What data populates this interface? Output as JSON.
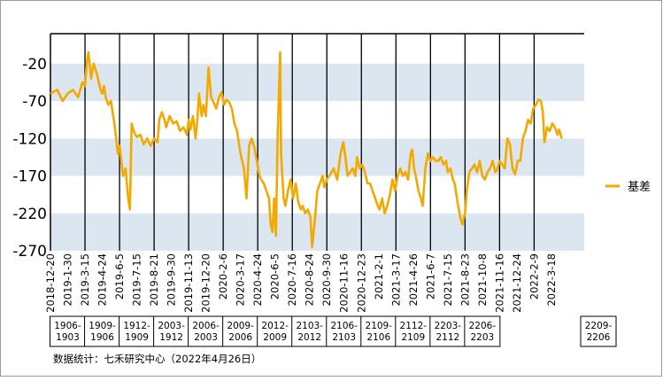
{
  "chart_data": {
    "type": "line",
    "title": "",
    "xlabel": "",
    "ylabel": "",
    "ylim": [
      -270,
      20
    ],
    "yticks": [
      -20,
      -70,
      -120,
      -170,
      -220,
      -270
    ],
    "grid": "alternating horizontal bands",
    "legend_position": "right",
    "colors": {
      "series": "#f2a900",
      "band": "#dce6f1",
      "frame": "#000000"
    },
    "dates": [
      "2018-12-20",
      "2019-1-30",
      "2019-3-15",
      "2019-4-24",
      "2019-6-5",
      "2019-7-15",
      "2019-8-21",
      "2019-9-30",
      "2019-11-13",
      "2019-12-20",
      "2020-2-6",
      "2020-3-17",
      "2020-4-24",
      "2020-6-5",
      "2020-7-16",
      "2020-8-24",
      "2020-9-30",
      "2020-11-16",
      "2020-12-23",
      "2021-2-1",
      "2021-3-17",
      "2021-4-26",
      "2021-6-7",
      "2021-7-15",
      "2021-8-23",
      "2021-10-8",
      "2021-11-16",
      "2021-12-24",
      "2022-2-9",
      "2022-3-18"
    ],
    "contract_labels": [
      "1906-\n1903",
      "1909-\n1906",
      "1912-\n1909",
      "2003-\n1912",
      "2006-\n2003",
      "2009-\n2006",
      "2012-\n2009",
      "2103-\n2012",
      "2106-\n2103",
      "2109-\n2106",
      "2112-\n2109",
      "2203-\n2112",
      "2206-\n2203",
      "2209-\n2206"
    ],
    "series": [
      {
        "name": "基差",
        "points": [
          [
            0,
            -60
          ],
          [
            0.4,
            -55
          ],
          [
            0.7,
            -70
          ],
          [
            1.0,
            -60
          ],
          [
            1.3,
            -55
          ],
          [
            1.6,
            -65
          ],
          [
            1.85,
            -45
          ],
          [
            2.0,
            -50
          ],
          [
            2.1,
            -20
          ],
          [
            2.2,
            -5
          ],
          [
            2.35,
            -40
          ],
          [
            2.5,
            -20
          ],
          [
            2.7,
            -35
          ],
          [
            2.9,
            -55
          ],
          [
            3.0,
            -60
          ],
          [
            3.1,
            -50
          ],
          [
            3.2,
            -65
          ],
          [
            3.35,
            -75
          ],
          [
            3.5,
            -70
          ],
          [
            3.7,
            -100
          ],
          [
            3.8,
            -120
          ],
          [
            3.9,
            -140
          ],
          [
            4.0,
            -130
          ],
          [
            4.2,
            -170
          ],
          [
            4.35,
            -160
          ],
          [
            4.5,
            -200
          ],
          [
            4.6,
            -215
          ],
          [
            4.7,
            -100
          ],
          [
            4.85,
            -112
          ],
          [
            5.0,
            -118
          ],
          [
            5.2,
            -115
          ],
          [
            5.4,
            -128
          ],
          [
            5.6,
            -120
          ],
          [
            5.8,
            -130
          ],
          [
            6.0,
            -120
          ],
          [
            6.2,
            -125
          ],
          [
            6.3,
            -95
          ],
          [
            6.45,
            -85
          ],
          [
            6.6,
            -95
          ],
          [
            6.7,
            -105
          ],
          [
            6.9,
            -90
          ],
          [
            7.1,
            -100
          ],
          [
            7.3,
            -97
          ],
          [
            7.5,
            -110
          ],
          [
            7.7,
            -105
          ],
          [
            7.9,
            -115
          ],
          [
            8.0,
            -95
          ],
          [
            8.1,
            -108
          ],
          [
            8.25,
            -90
          ],
          [
            8.4,
            -120
          ],
          [
            8.5,
            -95
          ],
          [
            8.6,
            -60
          ],
          [
            8.75,
            -90
          ],
          [
            8.85,
            -75
          ],
          [
            9.0,
            -90
          ],
          [
            9.15,
            -25
          ],
          [
            9.3,
            -65
          ],
          [
            9.45,
            -72
          ],
          [
            9.6,
            -80
          ],
          [
            9.75,
            -65
          ],
          [
            9.9,
            -58
          ],
          [
            10.05,
            -75
          ],
          [
            10.2,
            -68
          ],
          [
            10.35,
            -72
          ],
          [
            10.5,
            -80
          ],
          [
            10.65,
            -100
          ],
          [
            10.8,
            -110
          ],
          [
            11.0,
            -140
          ],
          [
            11.1,
            -150
          ],
          [
            11.2,
            -160
          ],
          [
            11.35,
            -200
          ],
          [
            11.5,
            -130
          ],
          [
            11.65,
            -120
          ],
          [
            11.8,
            -132
          ],
          [
            11.95,
            -150
          ],
          [
            12.1,
            -170
          ],
          [
            12.2,
            -175
          ],
          [
            12.35,
            -180
          ],
          [
            12.5,
            -190
          ],
          [
            12.65,
            -200
          ],
          [
            12.75,
            -235
          ],
          [
            12.85,
            -245
          ],
          [
            12.95,
            -200
          ],
          [
            13.05,
            -250
          ],
          [
            13.15,
            -120
          ],
          [
            13.3,
            -5
          ],
          [
            13.35,
            -140
          ],
          [
            13.5,
            -200
          ],
          [
            13.6,
            -210
          ],
          [
            13.75,
            -190
          ],
          [
            13.9,
            -175
          ],
          [
            14.05,
            -200
          ],
          [
            14.2,
            -180
          ],
          [
            14.35,
            -205
          ],
          [
            14.5,
            -215
          ],
          [
            14.6,
            -210
          ],
          [
            14.75,
            -220
          ],
          [
            14.9,
            -215
          ],
          [
            15.05,
            -225
          ],
          [
            15.15,
            -265
          ],
          [
            15.3,
            -230
          ],
          [
            15.45,
            -190
          ],
          [
            15.6,
            -180
          ],
          [
            15.75,
            -170
          ],
          [
            15.85,
            -185
          ],
          [
            16.0,
            -175
          ],
          [
            16.2,
            -168
          ],
          [
            16.4,
            -160
          ],
          [
            16.6,
            -175
          ],
          [
            16.8,
            -140
          ],
          [
            16.95,
            -125
          ],
          [
            17.05,
            -140
          ],
          [
            17.2,
            -170
          ],
          [
            17.35,
            -165
          ],
          [
            17.5,
            -160
          ],
          [
            17.65,
            -170
          ],
          [
            17.75,
            -145
          ],
          [
            17.9,
            -160
          ],
          [
            18.05,
            -155
          ],
          [
            18.2,
            -165
          ],
          [
            18.35,
            -180
          ],
          [
            18.5,
            -180
          ],
          [
            18.65,
            -190
          ],
          [
            18.8,
            -200
          ],
          [
            18.95,
            -210
          ],
          [
            19.05,
            -215
          ],
          [
            19.2,
            -200
          ],
          [
            19.35,
            -220
          ],
          [
            19.5,
            -210
          ],
          [
            19.65,
            -195
          ],
          [
            19.8,
            -175
          ],
          [
            19.95,
            -190
          ],
          [
            20.1,
            -170
          ],
          [
            20.25,
            -160
          ],
          [
            20.4,
            -170
          ],
          [
            20.55,
            -165
          ],
          [
            20.7,
            -175
          ],
          [
            20.85,
            -140
          ],
          [
            20.95,
            -135
          ],
          [
            21.05,
            -160
          ],
          [
            21.15,
            -170
          ],
          [
            21.3,
            -190
          ],
          [
            21.45,
            -200
          ],
          [
            21.55,
            -210
          ],
          [
            21.7,
            -160
          ],
          [
            21.85,
            -140
          ],
          [
            22.0,
            -150
          ],
          [
            22.15,
            -145
          ],
          [
            22.3,
            -150
          ],
          [
            22.45,
            -150
          ],
          [
            22.6,
            -145
          ],
          [
            22.75,
            -155
          ],
          [
            22.9,
            -150
          ],
          [
            23.0,
            -165
          ],
          [
            23.15,
            -160
          ],
          [
            23.3,
            -175
          ],
          [
            23.4,
            -180
          ],
          [
            23.5,
            -195
          ],
          [
            23.6,
            -210
          ],
          [
            23.75,
            -228
          ],
          [
            23.85,
            -235
          ],
          [
            24.0,
            -220
          ],
          [
            24.1,
            -190
          ],
          [
            24.25,
            -165
          ],
          [
            24.4,
            -160
          ],
          [
            24.55,
            -155
          ],
          [
            24.7,
            -165
          ],
          [
            24.85,
            -150
          ],
          [
            25.0,
            -170
          ],
          [
            25.15,
            -175
          ],
          [
            25.3,
            -165
          ],
          [
            25.45,
            -160
          ],
          [
            25.6,
            -150
          ],
          [
            25.75,
            -165
          ],
          [
            25.85,
            -162
          ],
          [
            26.0,
            -150
          ],
          [
            26.15,
            -155
          ],
          [
            26.3,
            -160
          ],
          [
            26.45,
            -120
          ],
          [
            26.6,
            -128
          ],
          [
            26.75,
            -160
          ],
          [
            26.9,
            -168
          ],
          [
            27.05,
            -150
          ],
          [
            27.2,
            -150
          ],
          [
            27.35,
            -120
          ],
          [
            27.5,
            -110
          ],
          [
            27.65,
            -95
          ],
          [
            27.8,
            -100
          ],
          [
            27.95,
            -80
          ],
          [
            28.1,
            -75
          ],
          [
            28.25,
            -68
          ],
          [
            28.4,
            -70
          ],
          [
            28.5,
            -85
          ],
          [
            28.6,
            -125
          ],
          [
            28.75,
            -105
          ],
          [
            28.9,
            -110
          ],
          [
            29.05,
            -100
          ],
          [
            29.2,
            -105
          ],
          [
            29.35,
            -115
          ],
          [
            29.45,
            -108
          ],
          [
            29.6,
            -120
          ]
        ]
      }
    ],
    "source_note": "数据统计：七禾研究中心（2022年4月26日）"
  }
}
